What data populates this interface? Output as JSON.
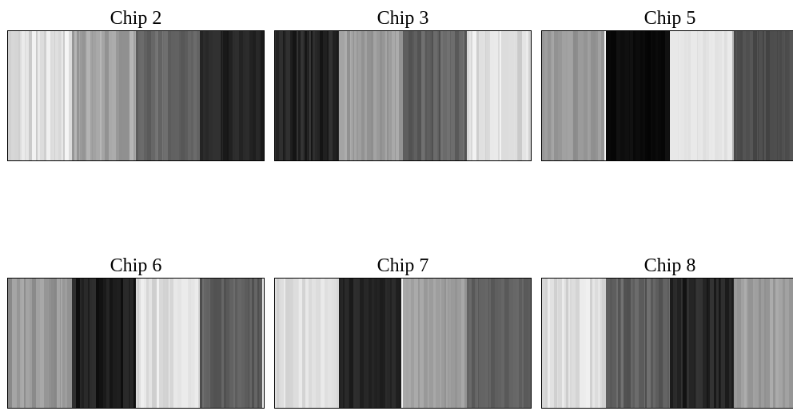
{
  "chips": [
    {
      "title": "Chip 2",
      "blocks": [
        {
          "base": 0.87,
          "width": 80,
          "jitter": 0.09
        },
        {
          "base": 0.64,
          "width": 80,
          "jitter": 0.08
        },
        {
          "base": 0.4,
          "width": 80,
          "jitter": 0.08
        },
        {
          "base": 0.14,
          "width": 80,
          "jitter": 0.06
        }
      ]
    },
    {
      "title": "Chip 3",
      "blocks": [
        {
          "base": 0.14,
          "width": 80,
          "jitter": 0.07
        },
        {
          "base": 0.62,
          "width": 80,
          "jitter": 0.07
        },
        {
          "base": 0.38,
          "width": 80,
          "jitter": 0.07
        },
        {
          "base": 0.87,
          "width": 80,
          "jitter": 0.08
        }
      ]
    },
    {
      "title": "Chip 5",
      "blocks": [
        {
          "base": 0.6,
          "width": 80,
          "jitter": 0.06,
          "spike": 0.95
        },
        {
          "base": 0.04,
          "width": 80,
          "jitter": 0.03
        },
        {
          "base": 0.9,
          "width": 80,
          "jitter": 0.03,
          "spike": 0.7
        },
        {
          "base": 0.3,
          "width": 80,
          "jitter": 0.04
        }
      ]
    },
    {
      "title": "Chip 6",
      "blocks": [
        {
          "base": 0.6,
          "width": 80,
          "jitter": 0.07
        },
        {
          "base": 0.12,
          "width": 80,
          "jitter": 0.07
        },
        {
          "base": 0.87,
          "width": 80,
          "jitter": 0.07
        },
        {
          "base": 0.37,
          "width": 80,
          "jitter": 0.07,
          "spike": 0.92
        }
      ]
    },
    {
      "title": "Chip 7",
      "blocks": [
        {
          "base": 0.87,
          "width": 80,
          "jitter": 0.05
        },
        {
          "base": 0.13,
          "width": 80,
          "jitter": 0.05,
          "spike": 0.95
        },
        {
          "base": 0.62,
          "width": 80,
          "jitter": 0.05
        },
        {
          "base": 0.38,
          "width": 80,
          "jitter": 0.04
        }
      ]
    },
    {
      "title": "Chip 8",
      "blocks": [
        {
          "base": 0.87,
          "width": 80,
          "jitter": 0.07
        },
        {
          "base": 0.38,
          "width": 80,
          "jitter": 0.07
        },
        {
          "base": 0.14,
          "width": 80,
          "jitter": 0.07
        },
        {
          "base": 0.62,
          "width": 80,
          "jitter": 0.06
        }
      ]
    }
  ]
}
